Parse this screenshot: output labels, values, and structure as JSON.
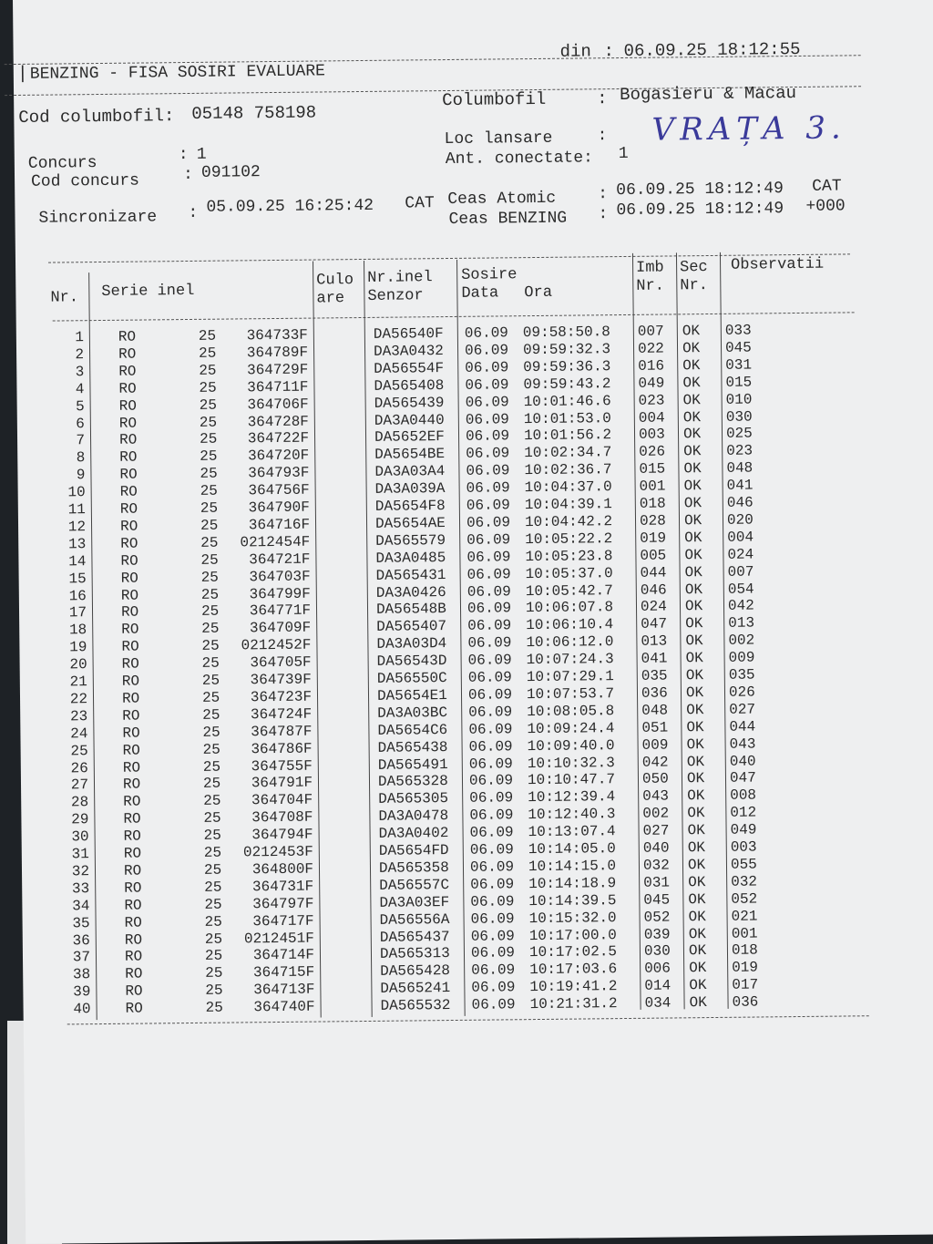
{
  "header": {
    "title": "BENZING - FISA SOSIRI EVALUARE",
    "din_label": "din",
    "din_value": "06.09.25 18:12:55",
    "cod_columbofil_label": "Cod columbofil:",
    "cod_columbofil_value": "05148 758198",
    "columbofil_label": "Columbofil",
    "columbofil_value": "Bogasieru & Macau",
    "concurs_label": "Concurs",
    "concurs_value": "1",
    "cod_concurs_label": "Cod concurs",
    "cod_concurs_value": "091102",
    "loc_lansare_label": "Loc lansare",
    "loc_lansare_handwritten": "VRAȚA 3.",
    "ant_conectate_label": "Ant. conectate:",
    "ant_conectate_value": "1",
    "sincronizare_label": "Sincronizare",
    "sincronizare_value": "05.09.25 16:25:42",
    "sincronizare_tz": "CAT",
    "ceas_atomic_label": "Ceas Atomic",
    "ceas_atomic_value": "06.09.25 18:12:49",
    "ceas_atomic_tz": "CAT",
    "ceas_benzing_label": "Ceas BENZING",
    "ceas_benzing_value": "06.09.25 18:12:49",
    "ceas_benzing_offset": "+000"
  },
  "table": {
    "columns": {
      "nr": "Nr.",
      "serie": "Serie inel",
      "culoare_1": "Culo",
      "culoare_2": "are",
      "senzor_1": "Nr.inel",
      "senzor_2": "Senzor",
      "sosire": "Sosire",
      "data": "Data",
      "ora": "Ora",
      "imb_1": "Imb",
      "imb_2": "Nr.",
      "sec_1": "Sec",
      "sec_2": "Nr.",
      "observatii": "Observatii"
    },
    "rows": [
      [
        "1",
        "RO",
        "25",
        "364733F",
        "DA56540F",
        "06.09",
        "09:58:50.8",
        "007",
        "OK",
        "033"
      ],
      [
        "2",
        "RO",
        "25",
        "364789F",
        "DA3A0432",
        "06.09",
        "09:59:32.3",
        "022",
        "OK",
        "045"
      ],
      [
        "3",
        "RO",
        "25",
        "364729F",
        "DA56554F",
        "06.09",
        "09:59:36.3",
        "016",
        "OK",
        "031"
      ],
      [
        "4",
        "RO",
        "25",
        "364711F",
        "DA565408",
        "06.09",
        "09:59:43.2",
        "049",
        "OK",
        "015"
      ],
      [
        "5",
        "RO",
        "25",
        "364706F",
        "DA565439",
        "06.09",
        "10:01:46.6",
        "023",
        "OK",
        "010"
      ],
      [
        "6",
        "RO",
        "25",
        "364728F",
        "DA3A0440",
        "06.09",
        "10:01:53.0",
        "004",
        "OK",
        "030"
      ],
      [
        "7",
        "RO",
        "25",
        "364722F",
        "DA5652EF",
        "06.09",
        "10:01:56.2",
        "003",
        "OK",
        "025"
      ],
      [
        "8",
        "RO",
        "25",
        "364720F",
        "DA5654BE",
        "06.09",
        "10:02:34.7",
        "026",
        "OK",
        "023"
      ],
      [
        "9",
        "RO",
        "25",
        "364793F",
        "DA3A03A4",
        "06.09",
        "10:02:36.7",
        "015",
        "OK",
        "048"
      ],
      [
        "10",
        "RO",
        "25",
        "364756F",
        "DA3A039A",
        "06.09",
        "10:04:37.0",
        "001",
        "OK",
        "041"
      ],
      [
        "11",
        "RO",
        "25",
        "364790F",
        "DA5654F8",
        "06.09",
        "10:04:39.1",
        "018",
        "OK",
        "046"
      ],
      [
        "12",
        "RO",
        "25",
        "364716F",
        "DA5654AE",
        "06.09",
        "10:04:42.2",
        "028",
        "OK",
        "020"
      ],
      [
        "13",
        "RO",
        "25",
        "0212454F",
        "DA565579",
        "06.09",
        "10:05:22.2",
        "019",
        "OK",
        "004"
      ],
      [
        "14",
        "RO",
        "25",
        "364721F",
        "DA3A0485",
        "06.09",
        "10:05:23.8",
        "005",
        "OK",
        "024"
      ],
      [
        "15",
        "RO",
        "25",
        "364703F",
        "DA565431",
        "06.09",
        "10:05:37.0",
        "044",
        "OK",
        "007"
      ],
      [
        "16",
        "RO",
        "25",
        "364799F",
        "DA3A0426",
        "06.09",
        "10:05:42.7",
        "046",
        "OK",
        "054"
      ],
      [
        "17",
        "RO",
        "25",
        "364771F",
        "DA56548B",
        "06.09",
        "10:06:07.8",
        "024",
        "OK",
        "042"
      ],
      [
        "18",
        "RO",
        "25",
        "364709F",
        "DA565407",
        "06.09",
        "10:06:10.4",
        "047",
        "OK",
        "013"
      ],
      [
        "19",
        "RO",
        "25",
        "0212452F",
        "DA3A03D4",
        "06.09",
        "10:06:12.0",
        "013",
        "OK",
        "002"
      ],
      [
        "20",
        "RO",
        "25",
        "364705F",
        "DA56543D",
        "06.09",
        "10:07:24.3",
        "041",
        "OK",
        "009"
      ],
      [
        "21",
        "RO",
        "25",
        "364739F",
        "DA56550C",
        "06.09",
        "10:07:29.1",
        "035",
        "OK",
        "035"
      ],
      [
        "22",
        "RO",
        "25",
        "364723F",
        "DA5654E1",
        "06.09",
        "10:07:53.7",
        "036",
        "OK",
        "026"
      ],
      [
        "23",
        "RO",
        "25",
        "364724F",
        "DA3A03BC",
        "06.09",
        "10:08:05.8",
        "048",
        "OK",
        "027"
      ],
      [
        "24",
        "RO",
        "25",
        "364787F",
        "DA5654C6",
        "06.09",
        "10:09:24.4",
        "051",
        "OK",
        "044"
      ],
      [
        "25",
        "RO",
        "25",
        "364786F",
        "DA565438",
        "06.09",
        "10:09:40.0",
        "009",
        "OK",
        "043"
      ],
      [
        "26",
        "RO",
        "25",
        "364755F",
        "DA565491",
        "06.09",
        "10:10:32.3",
        "042",
        "OK",
        "040"
      ],
      [
        "27",
        "RO",
        "25",
        "364791F",
        "DA565328",
        "06.09",
        "10:10:47.7",
        "050",
        "OK",
        "047"
      ],
      [
        "28",
        "RO",
        "25",
        "364704F",
        "DA565305",
        "06.09",
        "10:12:39.4",
        "043",
        "OK",
        "008"
      ],
      [
        "29",
        "RO",
        "25",
        "364708F",
        "DA3A0478",
        "06.09",
        "10:12:40.3",
        "002",
        "OK",
        "012"
      ],
      [
        "30",
        "RO",
        "25",
        "364794F",
        "DA3A0402",
        "06.09",
        "10:13:07.4",
        "027",
        "OK",
        "049"
      ],
      [
        "31",
        "RO",
        "25",
        "0212453F",
        "DA5654FD",
        "06.09",
        "10:14:05.0",
        "040",
        "OK",
        "003"
      ],
      [
        "32",
        "RO",
        "25",
        "364800F",
        "DA565358",
        "06.09",
        "10:14:15.0",
        "032",
        "OK",
        "055"
      ],
      [
        "33",
        "RO",
        "25",
        "364731F",
        "DA56557C",
        "06.09",
        "10:14:18.9",
        "031",
        "OK",
        "032"
      ],
      [
        "34",
        "RO",
        "25",
        "364797F",
        "DA3A03EF",
        "06.09",
        "10:14:39.5",
        "045",
        "OK",
        "052"
      ],
      [
        "35",
        "RO",
        "25",
        "364717F",
        "DA56556A",
        "06.09",
        "10:15:32.0",
        "052",
        "OK",
        "021"
      ],
      [
        "36",
        "RO",
        "25",
        "0212451F",
        "DA565437",
        "06.09",
        "10:17:00.0",
        "039",
        "OK",
        "001"
      ],
      [
        "37",
        "RO",
        "25",
        "364714F",
        "DA565313",
        "06.09",
        "10:17:02.5",
        "030",
        "OK",
        "018"
      ],
      [
        "38",
        "RO",
        "25",
        "364715F",
        "DA565428",
        "06.09",
        "10:17:03.6",
        "006",
        "OK",
        "019"
      ],
      [
        "39",
        "RO",
        "25",
        "364713F",
        "DA565241",
        "06.09",
        "10:19:41.2",
        "014",
        "OK",
        "017"
      ],
      [
        "40",
        "RO",
        "25",
        "364740F",
        "DA565532",
        "06.09",
        "10:21:31.2",
        "034",
        "OK",
        "036"
      ]
    ]
  }
}
